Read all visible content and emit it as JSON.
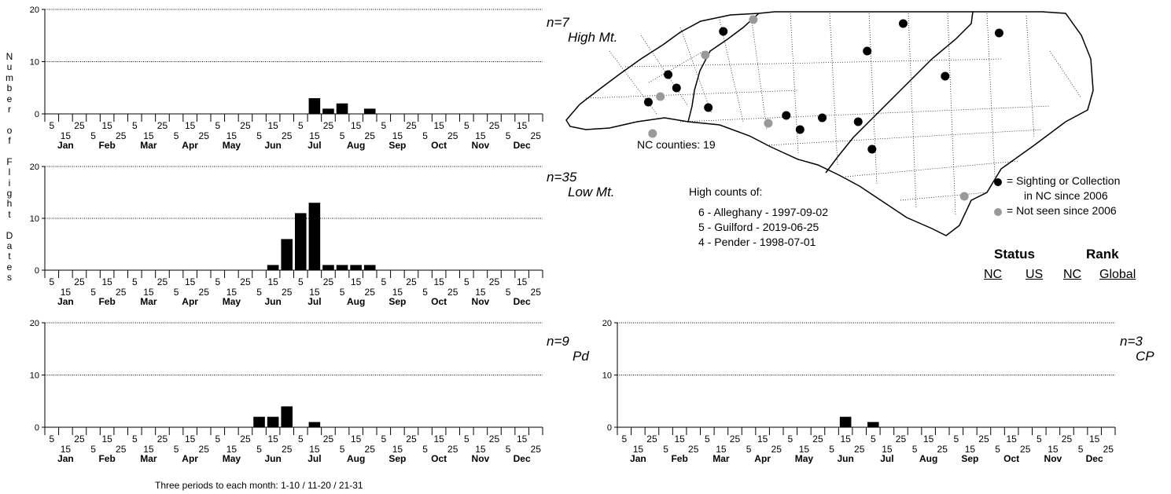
{
  "y_axis_label": "Number of Flight Dates",
  "x_axis": {
    "period_labels_top": [
      "5",
      "25",
      "15",
      "5",
      "25",
      "15",
      "5",
      "25",
      "15",
      "5",
      "25",
      "15",
      "5",
      "25",
      "15",
      "5",
      "25",
      "15"
    ],
    "period_labels_bottom": [
      "15",
      "5",
      "25",
      "15",
      "5",
      "25",
      "15",
      "5",
      "25",
      "15",
      "5",
      "25",
      "15",
      "5",
      "25",
      "15",
      "5",
      "25"
    ],
    "months": [
      "Jan",
      "Feb",
      "Mar",
      "Apr",
      "May",
      "Jun",
      "Jul",
      "Aug",
      "Sep",
      "Oct",
      "Nov",
      "Dec"
    ]
  },
  "footnote": "Three periods to each month: 1-10 / 11-20 / 21-31",
  "chart_data": [
    {
      "type": "bar",
      "region": "High Mt.",
      "n_label": "n=7",
      "ylim": [
        0,
        20
      ],
      "yticks": [
        "0",
        "10",
        "20"
      ],
      "grid": "horizontal dotted at 10 and 20",
      "values": [
        0,
        0,
        0,
        0,
        0,
        0,
        0,
        0,
        0,
        0,
        0,
        0,
        0,
        0,
        0,
        0,
        0,
        0,
        0,
        3,
        1,
        2,
        0,
        1,
        0,
        0,
        0,
        0,
        0,
        0,
        0,
        0,
        0,
        0,
        0,
        0
      ]
    },
    {
      "type": "bar",
      "region": "Low Mt.",
      "n_label": "n=35",
      "ylim": [
        0,
        20
      ],
      "yticks": [
        "0",
        "10",
        "20"
      ],
      "grid": "horizontal dotted at 10 and 20",
      "values": [
        0,
        0,
        0,
        0,
        0,
        0,
        0,
        0,
        0,
        0,
        0,
        0,
        0,
        0,
        0,
        0,
        1,
        6,
        11,
        13,
        1,
        1,
        1,
        1,
        0,
        0,
        0,
        0,
        0,
        0,
        0,
        0,
        0,
        0,
        0,
        0
      ]
    },
    {
      "type": "bar",
      "region": "Pd",
      "n_label": "n=9",
      "ylim": [
        0,
        20
      ],
      "yticks": [
        "0",
        "10",
        "20"
      ],
      "grid": "horizontal dotted at 10 and 20",
      "values": [
        0,
        0,
        0,
        0,
        0,
        0,
        0,
        0,
        0,
        0,
        0,
        0,
        0,
        0,
        0,
        2,
        2,
        4,
        0,
        1,
        0,
        0,
        0,
        0,
        0,
        0,
        0,
        0,
        0,
        0,
        0,
        0,
        0,
        0,
        0,
        0
      ]
    },
    {
      "type": "bar",
      "region": "CP",
      "n_label": "n=3",
      "ylim": [
        0,
        20
      ],
      "yticks": [
        "0",
        "10",
        "20"
      ],
      "grid": "horizontal dotted at 10 and 20",
      "values": [
        0,
        0,
        0,
        0,
        0,
        0,
        0,
        0,
        0,
        0,
        0,
        0,
        0,
        0,
        0,
        0,
        2,
        0,
        1,
        0,
        0,
        0,
        0,
        0,
        0,
        0,
        0,
        0,
        0,
        0,
        0,
        0,
        0,
        0,
        0,
        0
      ]
    }
  ],
  "map": {
    "counties_label": "NC counties: 19",
    "legend": {
      "sighting": "= Sighting or Collection",
      "sighting_2": "in NC since 2006",
      "not_seen": "= Not seen since 2006",
      "color_recent": "#000000",
      "color_old": "#999999"
    },
    "dots": [
      {
        "lon": -81.7,
        "lat": 36.35,
        "recent": true
      },
      {
        "lon": -81.2,
        "lat": 36.5,
        "recent": false
      },
      {
        "lon": -78.7,
        "lat": 36.45,
        "recent": true
      },
      {
        "lon": -77.1,
        "lat": 36.33,
        "recent": true
      },
      {
        "lon": -79.3,
        "lat": 36.1,
        "recent": true
      },
      {
        "lon": -78.0,
        "lat": 35.78,
        "recent": true
      },
      {
        "lon": -82.0,
        "lat": 36.05,
        "recent": false
      },
      {
        "lon": -82.62,
        "lat": 35.8,
        "recent": true
      },
      {
        "lon": -82.48,
        "lat": 35.63,
        "recent": true
      },
      {
        "lon": -82.95,
        "lat": 35.45,
        "recent": true
      },
      {
        "lon": -82.75,
        "lat": 35.52,
        "recent": false
      },
      {
        "lon": -81.95,
        "lat": 35.38,
        "recent": true
      },
      {
        "lon": -80.65,
        "lat": 35.28,
        "recent": true
      },
      {
        "lon": -80.05,
        "lat": 35.25,
        "recent": true
      },
      {
        "lon": -79.45,
        "lat": 35.2,
        "recent": true
      },
      {
        "lon": -80.95,
        "lat": 35.18,
        "recent": false
      },
      {
        "lon": -80.42,
        "lat": 35.1,
        "recent": true
      },
      {
        "lon": -82.88,
        "lat": 35.05,
        "recent": false
      },
      {
        "lon": -79.22,
        "lat": 34.85,
        "recent": true
      },
      {
        "lon": -77.68,
        "lat": 34.25,
        "recent": false
      }
    ]
  },
  "high_counts": {
    "title": "High counts of:",
    "items": [
      "6 - Alleghany - 1997-09-02",
      "5 - Guilford - 2019-06-25",
      "4 - Pender - 1998-07-01"
    ]
  },
  "status": {
    "status_head": "Status",
    "rank_head": "Rank",
    "status_nc": "NC",
    "status_us": "US",
    "rank_nc": "NC",
    "rank_global": "Global"
  }
}
